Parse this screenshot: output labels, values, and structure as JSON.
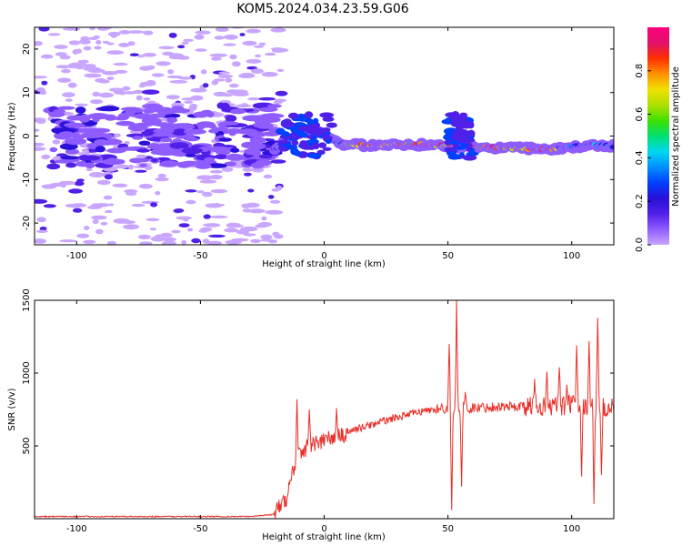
{
  "title": "KOM5.2024.034.23.59.G06",
  "chart_data": [
    {
      "type": "heatmap",
      "xlabel": "Height of straight line (km)",
      "ylabel": "Frequency (Hz)",
      "xlim": [
        -117,
        117
      ],
      "ylim": [
        -25,
        25
      ],
      "xticks": [
        -100,
        -50,
        0,
        50,
        100
      ],
      "yticks": [
        -20,
        -10,
        0,
        10,
        20
      ],
      "colorbar": {
        "label": "Normalized spectral amplitude",
        "range": [
          0,
          1
        ],
        "ticks": [
          0.0,
          0.2,
          0.4,
          0.6,
          0.8
        ],
        "colormap": [
          "#c9a6ff",
          "#8e5cff",
          "#5020e8",
          "#2a10d8",
          "#0040ff",
          "#0090ff",
          "#00d8f0",
          "#00e070",
          "#40e000",
          "#b0e000",
          "#f0e000",
          "#ff9000",
          "#ff3000",
          "#e0106a",
          "#ff007f"
        ]
      },
      "dominant_line": {
        "description": "frequency of the strongest component along height",
        "x": [
          -20,
          -15,
          -10,
          -5,
          0,
          5,
          10,
          20,
          30,
          40,
          50,
          60,
          70,
          80,
          90,
          100,
          110,
          117
        ],
        "y": [
          -3,
          -1,
          0.5,
          1,
          0.5,
          -1.5,
          -2,
          -2.2,
          -2,
          -2,
          -2.3,
          -2.5,
          -2.8,
          -2.8,
          -3,
          -2.5,
          -2,
          -2.3
        ]
      }
    },
    {
      "type": "line",
      "xlabel": "Height of straight line (km)",
      "ylabel": "SNR (v/v)",
      "xlim": [
        -117,
        117
      ],
      "ylim": [
        0,
        1500
      ],
      "xticks": [
        -100,
        -50,
        0,
        50,
        100
      ],
      "yticks": [
        500,
        1000,
        1500
      ],
      "series": [
        {
          "color": "#e8302a",
          "baseline": {
            "x": [
              -117,
              -30,
              -20,
              -15,
              -13,
              -10,
              -5,
              0,
              5,
              10,
              20,
              30,
              40,
              50,
              60,
              70,
              80,
              90,
              100,
              110,
              117
            ],
            "y": [
              15,
              15,
              30,
              150,
              300,
              460,
              510,
              540,
              560,
              600,
              650,
              700,
              740,
              760,
              760,
              770,
              770,
              770,
              780,
              770,
              760
            ]
          },
          "spikes": [
            {
              "x": -11,
              "y": 820
            },
            {
              "x": -6,
              "y": 750
            },
            {
              "x": 5,
              "y": 760
            },
            {
              "x": 8,
              "y": 520
            },
            {
              "x": 50.5,
              "y": 1200
            },
            {
              "x": 51.5,
              "y": 60
            },
            {
              "x": 53.5,
              "y": 1500
            },
            {
              "x": 55.5,
              "y": 220
            },
            {
              "x": 57,
              "y": 870
            },
            {
              "x": 85,
              "y": 960
            },
            {
              "x": 90,
              "y": 1010
            },
            {
              "x": 95,
              "y": 1040
            },
            {
              "x": 98,
              "y": 920
            },
            {
              "x": 102,
              "y": 1190
            },
            {
              "x": 104,
              "y": 290
            },
            {
              "x": 107,
              "y": 1220
            },
            {
              "x": 109,
              "y": 100
            },
            {
              "x": 110.5,
              "y": 1380
            },
            {
              "x": 112,
              "y": 300
            }
          ]
        }
      ]
    }
  ]
}
